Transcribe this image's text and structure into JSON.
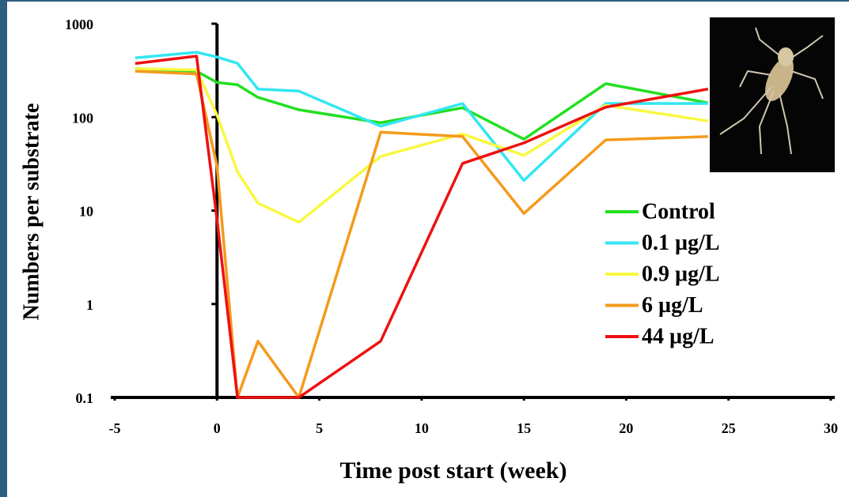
{
  "chart_data": {
    "type": "line",
    "xlabel": "Time post start (week)",
    "ylabel": "Numbers per  substrate",
    "x": [
      -4,
      -1,
      0,
      1,
      2,
      4,
      8,
      12,
      15,
      19,
      24
    ],
    "series": [
      {
        "name": "Control",
        "color": "#22e022",
        "values": [
          330,
          310,
          235,
          222,
          163,
          120,
          87,
          126,
          58,
          228,
          142
        ]
      },
      {
        "name": "0.1 µg/L",
        "color": "#33e6f2",
        "values": [
          430,
          495,
          440,
          377,
          200,
          190,
          80,
          140,
          21,
          140,
          140
        ]
      },
      {
        "name": "0.9 µg/L",
        "color": "#f8f840",
        "values": [
          330,
          320,
          105,
          26,
          12,
          7.5,
          38,
          66,
          39,
          134,
          91
        ]
      },
      {
        "name": "6 µg/L",
        "color": "#f59a1c",
        "values": [
          310,
          290,
          30,
          0.1,
          0.4,
          0.1,
          69,
          62,
          9.3,
          57,
          62
        ]
      },
      {
        "name": "44 µg/L",
        "color": "#ee1111",
        "values": [
          375,
          450,
          8,
          0.1,
          0.1,
          0.1,
          0.4,
          32,
          53,
          128,
          200
        ]
      }
    ],
    "xlim": [
      -5,
      30
    ],
    "xticks": [
      -5,
      0,
      5,
      10,
      15,
      20,
      25,
      30
    ],
    "ylim": [
      0.1,
      1000
    ],
    "yticks": [
      0.1,
      1,
      10,
      100,
      1000
    ],
    "log_y": true,
    "grid": false,
    "legend_position": "right"
  }
}
